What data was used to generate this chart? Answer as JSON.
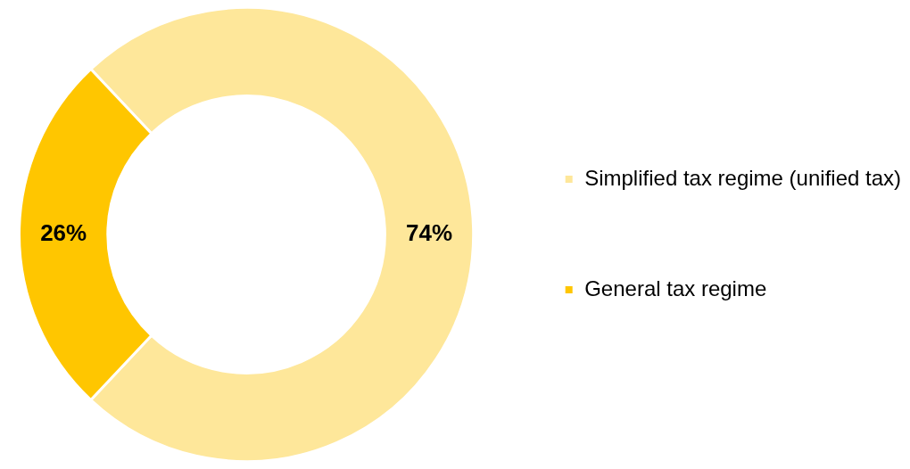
{
  "chart_data": {
    "type": "donut",
    "categories": [
      "Simplified tax regime (unified tax)",
      "General tax regime"
    ],
    "values": [
      74,
      26
    ],
    "colors": [
      "#fee79a",
      "#ffc600"
    ],
    "value_labels": [
      "74%",
      "26%"
    ],
    "legend": "right"
  }
}
